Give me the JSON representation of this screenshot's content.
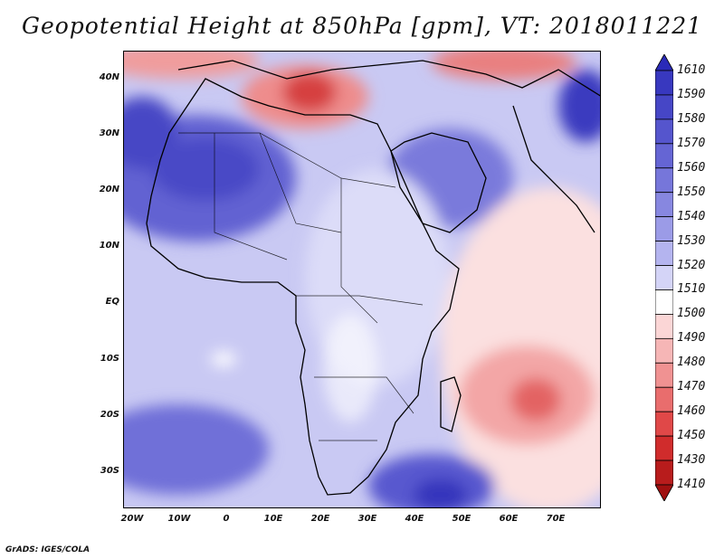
{
  "title": "Geopotential Height at 850hPa [gpm], VT: 2018011221",
  "footer": "GrADS: IGES/COLA",
  "map": {
    "lat_labels": [
      "40N",
      "30N",
      "20N",
      "10N",
      "EQ",
      "10S",
      "20S",
      "30S"
    ],
    "lon_labels": [
      "20W",
      "10W",
      "0",
      "10E",
      "20E",
      "30E",
      "40E",
      "50E",
      "60E",
      "70E"
    ]
  },
  "colorbar": {
    "levels": [
      "1610",
      "1590",
      "1580",
      "1570",
      "1560",
      "1550",
      "1540",
      "1530",
      "1520",
      "1510",
      "1500",
      "1490",
      "1480",
      "1470",
      "1460",
      "1450",
      "1430",
      "1410"
    ],
    "colors": [
      "#2a2ab8",
      "#3838bf",
      "#4646c6",
      "#5555cd",
      "#6565d4",
      "#7676da",
      "#8787e0",
      "#9b9be7",
      "#b4b4ef",
      "#d4d4f7",
      "#ffffff",
      "#fbd6d6",
      "#f6b6b6",
      "#f09292",
      "#e96d6d",
      "#e04848",
      "#d02c2c",
      "#b81c1c",
      "#a01010"
    ]
  }
}
